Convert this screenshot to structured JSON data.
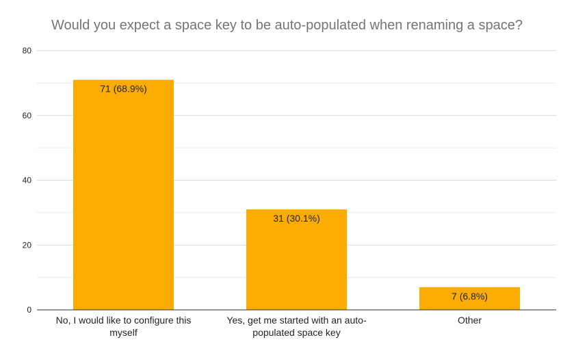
{
  "chart_data": {
    "type": "bar",
    "title": "Would you expect a space key to be auto-populated when renaming a space?",
    "xlabel": "",
    "ylabel": "",
    "categories": [
      "No, I would like to configure this myself",
      "Yes, get me started with an auto-populated space key",
      "Other"
    ],
    "category_lines": [
      [
        "No, I would like to configure this",
        "myself"
      ],
      [
        "Yes, get me started with an auto-",
        "populated space key"
      ],
      [
        "Other"
      ]
    ],
    "values": [
      71,
      31,
      7
    ],
    "data_labels": [
      "71 (68.9%)",
      "31 (30.1%)",
      "7 (6.8%)"
    ],
    "ylim": [
      0,
      80
    ],
    "yticks": [
      0,
      20,
      40,
      60,
      80
    ],
    "grid": true,
    "legend": "none",
    "colors": {
      "bar": "#FBAC02",
      "major_grid": "#d9d9d9",
      "minor_grid": "#ececec",
      "axis": "#333333",
      "title": "#757575"
    }
  }
}
